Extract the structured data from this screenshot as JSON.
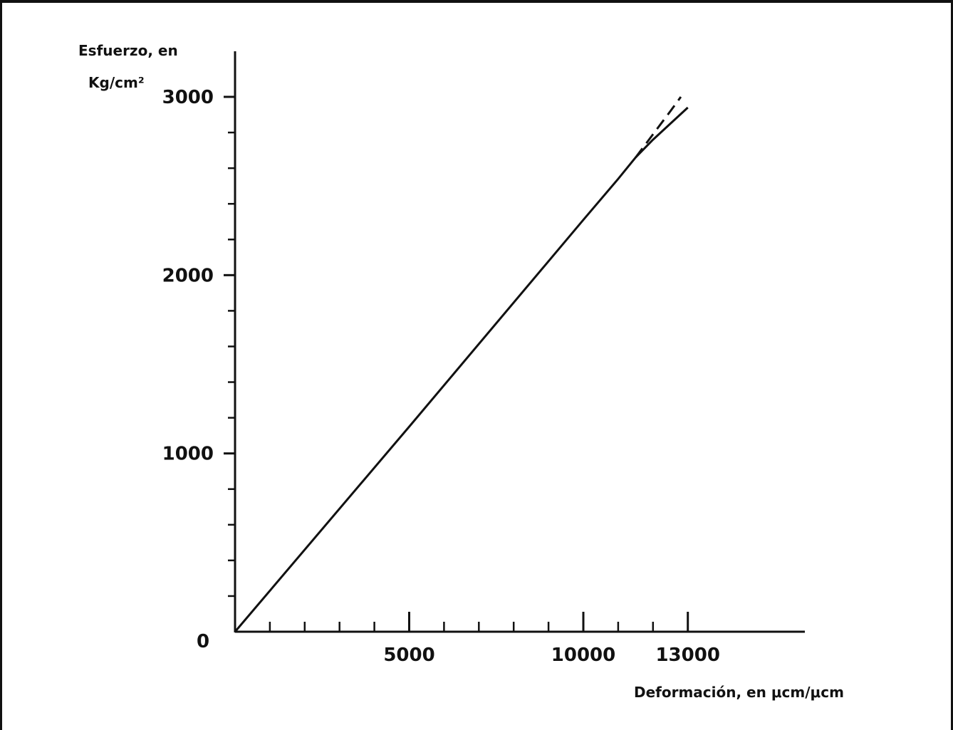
{
  "chart_data": {
    "type": "line",
    "ylabel_line1": "Esfuerzo, en",
    "ylabel_line2": "Kg/cm²",
    "xlabel": "Deformación, en μcm/μcm",
    "xlim": [
      0,
      16300
    ],
    "ylim": [
      0,
      3200
    ],
    "grid": false,
    "x_major_ticks": [
      0,
      5000,
      10000,
      13000
    ],
    "x_major_tick_labels": [
      "0",
      "5000",
      "10000",
      "13000"
    ],
    "x_minor_ticks": [
      1000,
      2000,
      3000,
      4000,
      6000,
      7000,
      8000,
      9000,
      11000,
      12000
    ],
    "y_major_ticks": [
      1000,
      2000,
      3000
    ],
    "y_major_tick_labels": [
      "1000",
      "2000",
      "3000"
    ],
    "y_minor_ticks": [
      200,
      400,
      600,
      800,
      1200,
      1400,
      1600,
      1800,
      2200,
      2400,
      2600,
      2800
    ],
    "series": [
      {
        "style": "solid",
        "x": [
          0,
          5000,
          10000,
          11000,
          11500,
          12000,
          12500,
          13000
        ],
        "y": [
          0,
          1150,
          2310,
          2540,
          2660,
          2760,
          2850,
          2940
        ]
      },
      {
        "style": "dashed",
        "x": [
          11500,
          12000,
          12500,
          12800
        ],
        "y": [
          2660,
          2790,
          2920,
          3000
        ]
      }
    ]
  }
}
